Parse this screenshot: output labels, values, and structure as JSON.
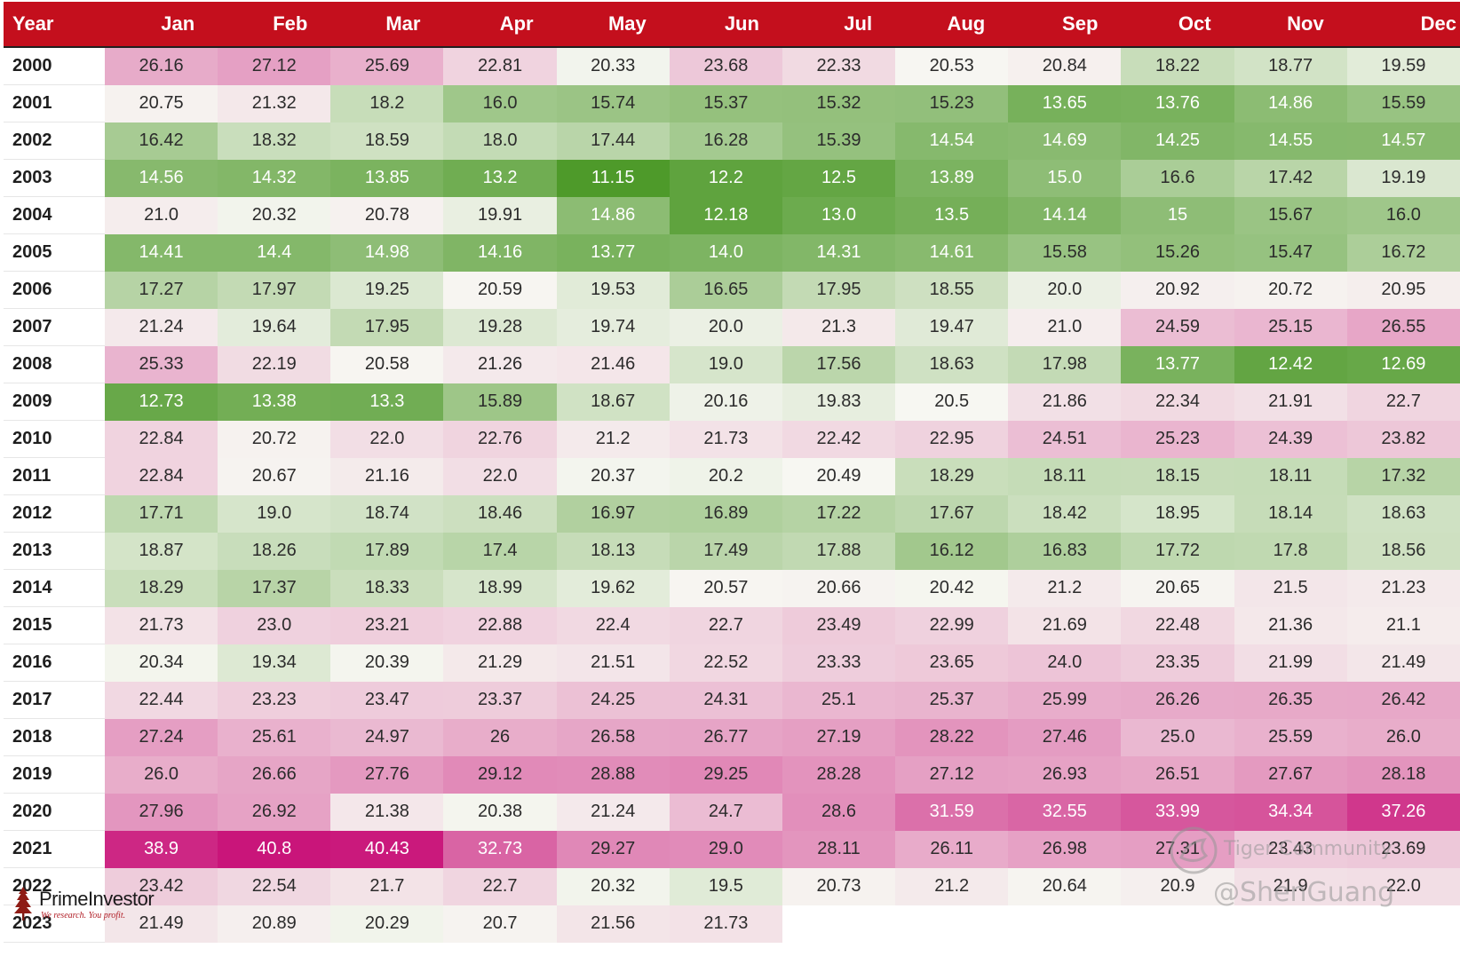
{
  "chart_data": {
    "type": "heatmap",
    "columns": [
      "Year",
      "Jan",
      "Feb",
      "Mar",
      "Apr",
      "May",
      "Jun",
      "Jul",
      "Aug",
      "Sep",
      "Oct",
      "Nov",
      "Dec"
    ],
    "rows": [
      {
        "year": "2000",
        "values": [
          "26.16",
          "27.12",
          "25.69",
          "22.81",
          "20.33",
          "23.68",
          "22.33",
          "20.53",
          "20.84",
          "18.22",
          "18.77",
          "19.59"
        ]
      },
      {
        "year": "2001",
        "values": [
          "20.75",
          "21.32",
          "18.2",
          "16.0",
          "15.74",
          "15.37",
          "15.32",
          "15.23",
          "13.65",
          "13.76",
          "14.86",
          "15.59"
        ]
      },
      {
        "year": "2002",
        "values": [
          "16.42",
          "18.32",
          "18.59",
          "18.0",
          "17.44",
          "16.28",
          "15.39",
          "14.54",
          "14.69",
          "14.25",
          "14.55",
          "14.57"
        ]
      },
      {
        "year": "2003",
        "values": [
          "14.56",
          "14.32",
          "13.85",
          "13.2",
          "11.15",
          "12.2",
          "12.5",
          "13.89",
          "15.0",
          "16.6",
          "17.42",
          "19.19"
        ]
      },
      {
        "year": "2004",
        "values": [
          "21.0",
          "20.32",
          "20.78",
          "19.91",
          "14.86",
          "12.18",
          "13.0",
          "13.5",
          "14.14",
          "15",
          "15.67",
          "16.0"
        ]
      },
      {
        "year": "2005",
        "values": [
          "14.41",
          "14.4",
          "14.98",
          "14.16",
          "13.77",
          "14.0",
          "14.31",
          "14.61",
          "15.58",
          "15.26",
          "15.47",
          "16.72"
        ]
      },
      {
        "year": "2006",
        "values": [
          "17.27",
          "17.97",
          "19.25",
          "20.59",
          "19.53",
          "16.65",
          "17.95",
          "18.55",
          "20.0",
          "20.92",
          "20.72",
          "20.95"
        ]
      },
      {
        "year": "2007",
        "values": [
          "21.24",
          "19.64",
          "17.95",
          "19.28",
          "19.74",
          "20.0",
          "21.3",
          "19.47",
          "21.0",
          "24.59",
          "25.15",
          "26.55"
        ]
      },
      {
        "year": "2008",
        "values": [
          "25.33",
          "22.19",
          "20.58",
          "21.26",
          "21.46",
          "19.0",
          "17.56",
          "18.63",
          "17.98",
          "13.77",
          "12.42",
          "12.69"
        ]
      },
      {
        "year": "2009",
        "values": [
          "12.73",
          "13.38",
          "13.3",
          "15.89",
          "18.67",
          "20.16",
          "19.83",
          "20.5",
          "21.86",
          "22.34",
          "21.91",
          "22.7"
        ]
      },
      {
        "year": "2010",
        "values": [
          "22.84",
          "20.72",
          "22.0",
          "22.76",
          "21.2",
          "21.73",
          "22.42",
          "22.95",
          "24.51",
          "25.23",
          "24.39",
          "23.82"
        ]
      },
      {
        "year": "2011",
        "values": [
          "22.84",
          "20.67",
          "21.16",
          "22.0",
          "20.37",
          "20.2",
          "20.49",
          "18.29",
          "18.11",
          "18.15",
          "18.11",
          "17.32"
        ]
      },
      {
        "year": "2012",
        "values": [
          "17.71",
          "19.0",
          "18.74",
          "18.46",
          "16.97",
          "16.89",
          "17.22",
          "17.67",
          "18.42",
          "18.95",
          "18.14",
          "18.63"
        ]
      },
      {
        "year": "2013",
        "values": [
          "18.87",
          "18.26",
          "17.89",
          "17.4",
          "18.13",
          "17.49",
          "17.88",
          "16.12",
          "16.83",
          "17.72",
          "17.8",
          "18.56"
        ]
      },
      {
        "year": "2014",
        "values": [
          "18.29",
          "17.37",
          "18.33",
          "18.99",
          "19.62",
          "20.57",
          "20.66",
          "20.42",
          "21.2",
          "20.65",
          "21.5",
          "21.23"
        ]
      },
      {
        "year": "2015",
        "values": [
          "21.73",
          "23.0",
          "23.21",
          "22.88",
          "22.4",
          "22.7",
          "23.49",
          "22.99",
          "21.69",
          "22.48",
          "21.36",
          "21.1"
        ]
      },
      {
        "year": "2016",
        "values": [
          "20.34",
          "19.34",
          "20.39",
          "21.29",
          "21.51",
          "22.52",
          "23.33",
          "23.65",
          "24.0",
          "23.35",
          "21.99",
          "21.49"
        ]
      },
      {
        "year": "2017",
        "values": [
          "22.44",
          "23.23",
          "23.47",
          "23.37",
          "24.25",
          "24.31",
          "25.1",
          "25.37",
          "25.99",
          "26.26",
          "26.35",
          "26.42"
        ]
      },
      {
        "year": "2018",
        "values": [
          "27.24",
          "25.61",
          "24.97",
          "26",
          "26.58",
          "26.77",
          "27.19",
          "28.22",
          "27.46",
          "25.0",
          "25.59",
          "26.0"
        ]
      },
      {
        "year": "2019",
        "values": [
          "26.0",
          "26.66",
          "27.76",
          "29.12",
          "28.88",
          "29.25",
          "28.28",
          "27.12",
          "26.93",
          "26.51",
          "27.67",
          "28.18"
        ]
      },
      {
        "year": "2020",
        "values": [
          "27.96",
          "26.92",
          "21.38",
          "20.38",
          "21.24",
          "24.7",
          "28.6",
          "31.59",
          "32.55",
          "33.99",
          "34.34",
          "37.26"
        ]
      },
      {
        "year": "2021",
        "values": [
          "38.9",
          "40.8",
          "40.43",
          "32.73",
          "29.27",
          "29.0",
          "28.11",
          "26.11",
          "26.98",
          "27.31",
          "23.43",
          "23.69"
        ]
      },
      {
        "year": "2022",
        "values": [
          "23.42",
          "22.54",
          "21.7",
          "22.7",
          "20.32",
          "19.5",
          "20.73",
          "21.2",
          "20.64",
          "20.9",
          "21.9",
          "22.0"
        ]
      },
      {
        "year": "2023",
        "values": [
          "21.49",
          "20.89",
          "20.29",
          "20.7",
          "21.56",
          "21.73"
        ]
      }
    ],
    "colors": {
      "header_bg": "#c40f1d",
      "header_text": "#ffffff",
      "low": "#4e9a2a",
      "mid": "#f7f7f2",
      "high": "#c9157a"
    }
  },
  "brand": {
    "name": "PrimeInvestor",
    "tagline": "We research. You profit."
  },
  "watermark": {
    "community": "Tiger Community",
    "handle": "@ShenGuang"
  }
}
